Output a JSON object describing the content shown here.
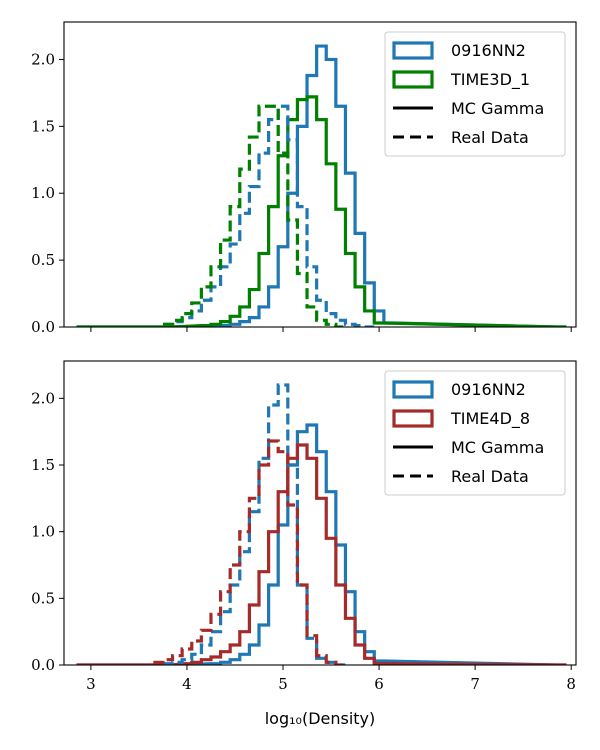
{
  "chart_data": [
    {
      "type": "step-histogram",
      "panel": "top",
      "xlabel": "",
      "ylabel": "",
      "xlim": [
        2.72,
        8.05
      ],
      "ylim": [
        0,
        2.28
      ],
      "xticks": [
        3,
        4,
        5,
        6,
        7,
        8
      ],
      "xtick_labels_visible": false,
      "yticks": [
        0.0,
        0.5,
        1.0,
        1.5,
        2.0
      ],
      "ytick_labels": [
        "0.0",
        "0.5",
        "1.0",
        "1.5",
        "2.0"
      ],
      "grid": false,
      "legend": {
        "position": "top-right",
        "entries": [
          {
            "label": "0916NN2",
            "kind": "patch",
            "color": "#1f77b4"
          },
          {
            "label": "TIME3D_1",
            "kind": "patch",
            "color": "#008000"
          },
          {
            "label": "MC Gamma",
            "kind": "line",
            "dash": "solid",
            "color": "#000000"
          },
          {
            "label": "Real Data",
            "kind": "line",
            "dash": "dashed",
            "color": "#000000"
          }
        ]
      },
      "series": [
        {
          "name": "0916NN2",
          "subset": "MC Gamma",
          "color": "#1f77b4",
          "dash": "solid",
          "x": [
            2.9,
            3.8,
            4.4,
            4.5,
            4.6,
            4.7,
            4.8,
            4.9,
            5.0,
            5.1,
            5.2,
            5.3,
            5.4,
            5.5,
            5.6,
            5.7,
            5.8,
            5.9,
            6.0,
            6.1,
            7.9
          ],
          "y": [
            0.0,
            0.0,
            0.01,
            0.02,
            0.04,
            0.07,
            0.15,
            0.3,
            0.6,
            1.0,
            1.5,
            1.88,
            2.1,
            2.0,
            1.65,
            1.15,
            0.7,
            0.33,
            0.12,
            0.03,
            0.0
          ]
        },
        {
          "name": "TIME3D_1",
          "subset": "MC Gamma",
          "color": "#008000",
          "dash": "solid",
          "x": [
            2.9,
            3.8,
            4.2,
            4.3,
            4.4,
            4.5,
            4.6,
            4.7,
            4.8,
            4.9,
            5.0,
            5.1,
            5.2,
            5.3,
            5.4,
            5.5,
            5.6,
            5.7,
            5.8,
            5.9,
            6.0,
            7.9
          ],
          "y": [
            0.0,
            0.0,
            0.01,
            0.02,
            0.04,
            0.08,
            0.15,
            0.28,
            0.55,
            0.9,
            1.28,
            1.55,
            1.7,
            1.72,
            1.55,
            1.22,
            0.88,
            0.55,
            0.3,
            0.12,
            0.03,
            0.0
          ]
        },
        {
          "name": "0916NN2",
          "subset": "Real Data",
          "color": "#1f77b4",
          "dash": "dashed",
          "x": [
            3.8,
            3.9,
            4.0,
            4.1,
            4.2,
            4.3,
            4.4,
            4.5,
            4.6,
            4.7,
            4.8,
            4.9,
            5.0,
            5.1,
            5.2,
            5.3,
            5.4,
            5.5,
            5.6,
            5.7,
            5.8,
            5.9
          ],
          "y": [
            0.02,
            0.04,
            0.07,
            0.12,
            0.2,
            0.3,
            0.45,
            0.62,
            0.85,
            1.05,
            1.3,
            1.55,
            1.65,
            1.4,
            0.9,
            0.45,
            0.2,
            0.1,
            0.05,
            0.02,
            0.01,
            0.0
          ]
        },
        {
          "name": "TIME3D_1",
          "subset": "Real Data",
          "color": "#008000",
          "dash": "dashed",
          "x": [
            3.8,
            3.9,
            4.0,
            4.1,
            4.2,
            4.3,
            4.4,
            4.5,
            4.6,
            4.7,
            4.8,
            4.9,
            5.0,
            5.1,
            5.2,
            5.3,
            5.4,
            5.5,
            5.6
          ],
          "y": [
            0.02,
            0.05,
            0.1,
            0.18,
            0.3,
            0.45,
            0.65,
            0.9,
            1.18,
            1.42,
            1.65,
            1.65,
            1.3,
            0.8,
            0.4,
            0.15,
            0.05,
            0.02,
            0.0
          ]
        }
      ]
    },
    {
      "type": "step-histogram",
      "panel": "bottom",
      "xlabel": "log₁₀(Density)",
      "ylabel": "",
      "xlim": [
        2.72,
        8.05
      ],
      "ylim": [
        0,
        2.28
      ],
      "xticks": [
        3,
        4,
        5,
        6,
        7,
        8
      ],
      "xtick_labels": [
        "3",
        "4",
        "5",
        "6",
        "7",
        "8"
      ],
      "yticks": [
        0.0,
        0.5,
        1.0,
        1.5,
        2.0
      ],
      "ytick_labels": [
        "0.0",
        "0.5",
        "1.0",
        "1.5",
        "2.0"
      ],
      "grid": false,
      "legend": {
        "position": "top-right",
        "entries": [
          {
            "label": "0916NN2",
            "kind": "patch",
            "color": "#1f77b4"
          },
          {
            "label": "TIME4D_8",
            "kind": "patch",
            "color": "#a52a2a"
          },
          {
            "label": "MC Gamma",
            "kind": "line",
            "dash": "solid",
            "color": "#000000"
          },
          {
            "label": "Real Data",
            "kind": "line",
            "dash": "dashed",
            "color": "#000000"
          }
        ]
      },
      "series": [
        {
          "name": "0916NN2",
          "subset": "MC Gamma",
          "color": "#1f77b4",
          "dash": "solid",
          "x": [
            2.9,
            3.8,
            4.3,
            4.4,
            4.5,
            4.6,
            4.7,
            4.8,
            4.9,
            5.0,
            5.1,
            5.2,
            5.3,
            5.4,
            5.5,
            5.6,
            5.7,
            5.8,
            5.9,
            6.0,
            7.9
          ],
          "y": [
            0.0,
            0.0,
            0.01,
            0.02,
            0.04,
            0.08,
            0.15,
            0.3,
            0.6,
            1.05,
            1.5,
            1.75,
            1.8,
            1.6,
            1.3,
            0.9,
            0.55,
            0.25,
            0.1,
            0.03,
            0.0
          ]
        },
        {
          "name": "TIME4D_8",
          "subset": "MC Gamma",
          "color": "#a52a2a",
          "dash": "solid",
          "x": [
            2.9,
            3.8,
            4.0,
            4.1,
            4.2,
            4.3,
            4.4,
            4.5,
            4.6,
            4.7,
            4.8,
            4.9,
            5.0,
            5.1,
            5.2,
            5.3,
            5.4,
            5.5,
            5.6,
            5.7,
            5.8,
            5.9,
            6.0,
            7.9
          ],
          "y": [
            0.0,
            0.0,
            0.01,
            0.02,
            0.04,
            0.06,
            0.1,
            0.15,
            0.25,
            0.45,
            0.7,
            1.0,
            1.3,
            1.55,
            1.65,
            1.55,
            1.25,
            0.95,
            0.6,
            0.35,
            0.15,
            0.05,
            0.01,
            0.0
          ]
        },
        {
          "name": "0916NN2",
          "subset": "Real Data",
          "color": "#1f77b4",
          "dash": "dashed",
          "x": [
            3.8,
            3.9,
            4.0,
            4.1,
            4.2,
            4.3,
            4.4,
            4.5,
            4.6,
            4.7,
            4.8,
            4.9,
            5.0,
            5.1,
            5.2,
            5.3,
            5.4,
            5.5,
            5.6
          ],
          "y": [
            0.01,
            0.02,
            0.04,
            0.08,
            0.15,
            0.25,
            0.4,
            0.6,
            0.85,
            1.15,
            1.55,
            1.95,
            2.1,
            1.5,
            0.6,
            0.2,
            0.05,
            0.02,
            0.0
          ]
        },
        {
          "name": "TIME4D_8",
          "subset": "Real Data",
          "color": "#a52a2a",
          "dash": "dashed",
          "x": [
            3.7,
            3.8,
            3.9,
            4.0,
            4.1,
            4.2,
            4.3,
            4.4,
            4.5,
            4.6,
            4.7,
            4.8,
            4.9,
            5.0,
            5.1,
            5.2,
            5.3,
            5.4,
            5.5,
            5.6
          ],
          "y": [
            0.02,
            0.04,
            0.07,
            0.12,
            0.18,
            0.26,
            0.38,
            0.55,
            0.75,
            1.0,
            1.25,
            1.5,
            1.68,
            1.6,
            1.2,
            0.6,
            0.22,
            0.07,
            0.02,
            0.0
          ]
        }
      ]
    }
  ]
}
